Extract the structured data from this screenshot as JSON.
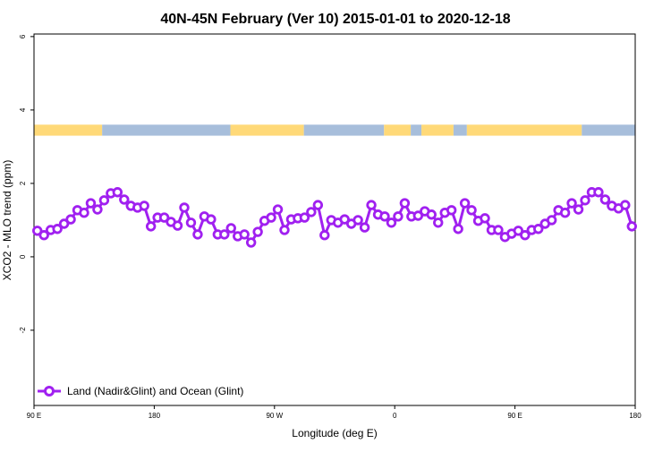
{
  "chart_data": {
    "type": "line",
    "title": "40N-45N February (Ver 10)   2015-01-01 to 2020-12-18",
    "xlabel": "Longitude (deg E)",
    "ylabel": "XCO2 - MLO trend (ppm)",
    "xlim": [
      90,
      540
    ],
    "ylim": [
      -4.05,
      6.07
    ],
    "x_ticks": [
      {
        "value": 90,
        "label": "90 E"
      },
      {
        "value": 180,
        "label": "180"
      },
      {
        "value": 270,
        "label": "90 W"
      },
      {
        "value": 360,
        "label": "0"
      },
      {
        "value": 450,
        "label": "90 E"
      },
      {
        "value": 540,
        "label": "180"
      }
    ],
    "y_ticks": [
      {
        "value": 6,
        "label": "6"
      },
      {
        "value": 4,
        "label": "4"
      },
      {
        "value": 2,
        "label": "2"
      },
      {
        "value": 0,
        "label": "0"
      },
      {
        "value": -2,
        "label": "-2"
      }
    ],
    "grid": false,
    "legend_position": "bottom-left",
    "series": [
      {
        "name": "Land (Nadir&Glint) and Ocean (Glint)",
        "color": "#a020f0",
        "x_start": 92.5,
        "x_step": 5,
        "values": [
          0.71,
          0.59,
          0.73,
          0.76,
          0.9,
          1.02,
          1.27,
          1.2,
          1.46,
          1.29,
          1.54,
          1.73,
          1.76,
          1.56,
          1.39,
          1.34,
          1.39,
          0.83,
          1.07,
          1.07,
          0.95,
          0.85,
          1.34,
          0.93,
          0.61,
          1.1,
          1.02,
          0.61,
          0.61,
          0.78,
          0.56,
          0.61,
          0.39,
          0.68,
          0.98,
          1.07,
          1.29,
          0.73,
          1.02,
          1.05,
          1.07,
          1.22,
          1.41,
          0.59,
          1.0,
          0.93,
          1.02,
          0.9,
          1.0,
          0.8,
          1.41,
          1.15,
          1.1,
          0.93,
          1.1,
          1.46,
          1.1,
          1.12,
          1.24,
          1.15,
          0.93,
          1.2,
          1.27,
          0.76,
          1.46,
          1.27,
          0.98,
          1.05,
          0.73,
          0.73,
          0.54,
          0.63,
          0.71,
          0.59,
          0.73,
          0.76,
          0.9,
          1.0,
          1.27,
          1.2,
          1.46,
          1.29,
          1.54,
          1.76,
          1.76,
          1.56,
          1.39,
          1.32,
          1.41,
          0.83
        ]
      }
    ],
    "surface_band": {
      "y_range": [
        3.3,
        3.6
      ],
      "land_color": "#ffd978",
      "ocean_color": "#a7bedb",
      "segments": [
        {
          "from": 90,
          "to": 141,
          "type": "land"
        },
        {
          "from": 141,
          "to": 237,
          "type": "ocean"
        },
        {
          "from": 237,
          "to": 292,
          "type": "land"
        },
        {
          "from": 292,
          "to": 352,
          "type": "ocean"
        },
        {
          "from": 352,
          "to": 372,
          "type": "land"
        },
        {
          "from": 372,
          "to": 380,
          "type": "ocean"
        },
        {
          "from": 380,
          "to": 404,
          "type": "land"
        },
        {
          "from": 404,
          "to": 414,
          "type": "ocean"
        },
        {
          "from": 414,
          "to": 500,
          "type": "land"
        },
        {
          "from": 500,
          "to": 540,
          "type": "ocean"
        }
      ]
    }
  }
}
